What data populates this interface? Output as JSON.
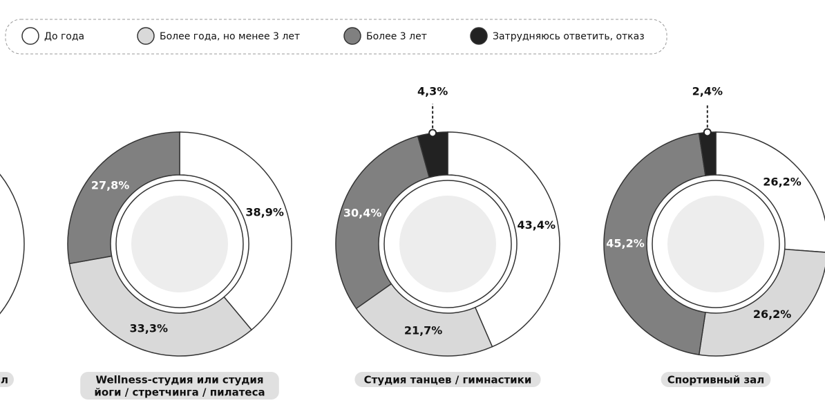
{
  "chart_data": [
    {
      "type": "pie",
      "title": [
        "л"
      ]
    },
    {
      "type": "pie",
      "title": [
        "Wellness-студия или студия",
        "йоги / стретчинга / пилатеса"
      ],
      "categories": [
        "До года",
        "Более года, но менее 3 лет",
        "Более 3 лет"
      ],
      "values": [
        38.9,
        33.3,
        27.8
      ],
      "value_labels": [
        "38,9%",
        "33,3%",
        "27,8%"
      ],
      "colors": [
        "#ffffff",
        "#d9d9d9",
        "#808080"
      ]
    },
    {
      "type": "pie",
      "title": [
        "Студия танцев / гимнастики"
      ],
      "categories": [
        "До года",
        "Более года, но менее 3 лет",
        "Более 3 лет",
        "Затрудняюсь ответить, отказ"
      ],
      "values": [
        43.4,
        21.7,
        30.4,
        4.3
      ],
      "value_labels": [
        "43,4%",
        "21,7%",
        "30,4%",
        "4,3%"
      ],
      "colors": [
        "#ffffff",
        "#d9d9d9",
        "#808080",
        "#222222"
      ]
    },
    {
      "type": "pie",
      "title": [
        "Спортивный зал"
      ],
      "categories": [
        "До года",
        "Более года, но менее 3 лет",
        "Более 3 лет",
        "Затрудняюсь ответить, отказ"
      ],
      "values": [
        26.2,
        26.2,
        45.2,
        2.4
      ],
      "value_labels": [
        "26,2%",
        "26,2%",
        "45,2%",
        "2,4%"
      ],
      "colors": [
        "#ffffff",
        "#d9d9d9",
        "#808080",
        "#222222"
      ]
    }
  ]
}
